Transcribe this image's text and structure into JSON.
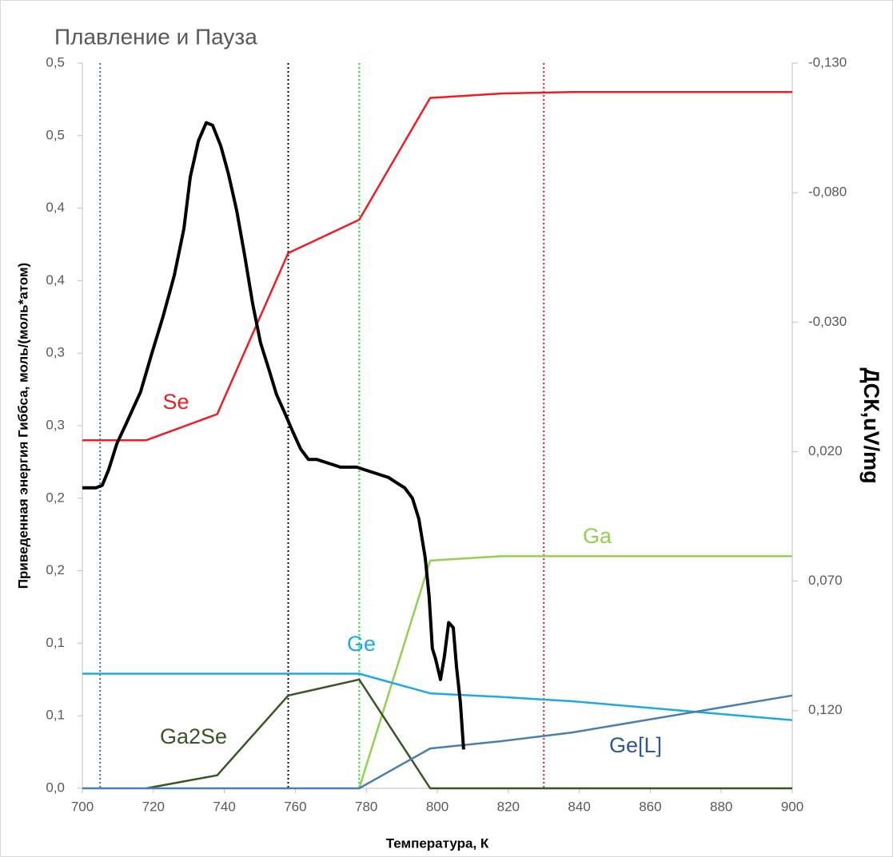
{
  "chart_data": {
    "type": "line",
    "title": "Плавление и Пауза",
    "xlabel": "Температура, К",
    "ylabel": "Приведенная энергия Гиббса, моль/(моль*атом)",
    "y2label": "ДСК,uV/mg",
    "x": [
      700,
      718,
      738,
      758,
      778,
      798,
      818,
      838,
      900
    ],
    "xlim": [
      700,
      900
    ],
    "xticks": [
      700,
      720,
      740,
      760,
      780,
      800,
      820,
      840,
      860,
      880,
      900
    ],
    "ylim": [
      0,
      0.5
    ],
    "yticks": [
      {
        "value": 0,
        "label": "0,0"
      },
      {
        "value": 0.05,
        "label": "0,1"
      },
      {
        "value": 0.1,
        "label": "0,1"
      },
      {
        "value": 0.15,
        "label": "0,2"
      },
      {
        "value": 0.2,
        "label": "0,2"
      },
      {
        "value": 0.25,
        "label": "0,3"
      },
      {
        "value": 0.3,
        "label": "0,3"
      },
      {
        "value": 0.35,
        "label": "0,4"
      },
      {
        "value": 0.4,
        "label": "0,4"
      },
      {
        "value": 0.45,
        "label": "0,5"
      },
      {
        "value": 0.5,
        "label": "0,5"
      }
    ],
    "y2lim": [
      0.15,
      -0.13
    ],
    "y2ticks": [
      {
        "value": -0.13,
        "label": "-0,130"
      },
      {
        "value": -0.08,
        "label": "-0,080"
      },
      {
        "value": -0.03,
        "label": "-0,030"
      },
      {
        "value": 0.02,
        "label": "0,020"
      },
      {
        "value": 0.07,
        "label": "0,070"
      },
      {
        "value": 0.12,
        "label": "0,120"
      }
    ],
    "series": [
      {
        "name": "Se",
        "color": "#ee1c25",
        "values": [
          0.24,
          0.24,
          0.258,
          0.369,
          0.392,
          0.476,
          0.479,
          0.48,
          0.48
        ]
      },
      {
        "name": "Ga",
        "color": "#92d050",
        "values": [
          null,
          null,
          null,
          null,
          0,
          0.157,
          0.16,
          0.16,
          0.16
        ]
      },
      {
        "name": "Ge",
        "color": "#1ea9e1",
        "values": [
          0.079,
          0.079,
          0.079,
          0.079,
          0.079,
          0.0655,
          0.063,
          0.06,
          0.047
        ]
      },
      {
        "name": "Ga2Se",
        "color": "#375623",
        "values": [
          null,
          0,
          0.009,
          0.064,
          0.075,
          0,
          0,
          0,
          0
        ]
      },
      {
        "name": "Ge[L]",
        "color": "#4a7ead",
        "values": [
          0,
          0,
          0,
          0,
          0,
          0.0275,
          0.0325,
          0.0385,
          0.064
        ]
      },
      {
        "color": "#000000",
        "axis": "y2",
        "x": [
          700.0,
          701.6,
          703.8,
          705.6,
          707.4,
          709.7,
          712.4,
          716.4,
          719.6,
          722.7,
          725.9,
          728.6,
          730.4,
          732.7,
          734.9,
          736.7,
          739.0,
          741.2,
          743.5,
          745.7,
          748.0,
          750.2,
          752.5,
          754.7,
          757.0,
          759.2,
          761.5,
          763.7,
          766.0,
          768.2,
          770.5,
          772.7,
          775.9,
          777.3,
          779.5,
          781.8,
          784.0,
          786.3,
          788.5,
          790.8,
          793.0,
          794.8,
          796.6,
          797.7,
          798.6,
          799.5,
          800.9,
          802.0,
          803.2,
          804.5,
          805.4,
          806.5,
          807.4
        ],
        "values": [
          0.034,
          0.034,
          0.034,
          0.033,
          0.027,
          0.017,
          0.009,
          -0.003,
          -0.018,
          -0.032,
          -0.048,
          -0.066,
          -0.086,
          -0.1,
          -0.107,
          -0.106,
          -0.098,
          -0.087,
          -0.073,
          -0.056,
          -0.037,
          -0.022,
          -0.012,
          -0.002,
          0.005,
          0.012,
          0.019,
          0.023,
          0.023,
          0.024,
          0.025,
          0.026,
          0.026,
          0.026,
          0.027,
          0.028,
          0.029,
          0.03,
          0.032,
          0.034,
          0.038,
          0.046,
          0.061,
          0.076,
          0.096,
          0.1,
          0.108,
          0.099,
          0.086,
          0.088,
          0.103,
          0.117,
          0.135
        ]
      }
    ],
    "vlines": [
      {
        "x": 705,
        "color": "#2e75b6"
      },
      {
        "x": 758,
        "color": "#000000"
      },
      {
        "x": 778,
        "color": "#22dd22"
      },
      {
        "x": 830,
        "color": "#ee1c25"
      }
    ]
  }
}
